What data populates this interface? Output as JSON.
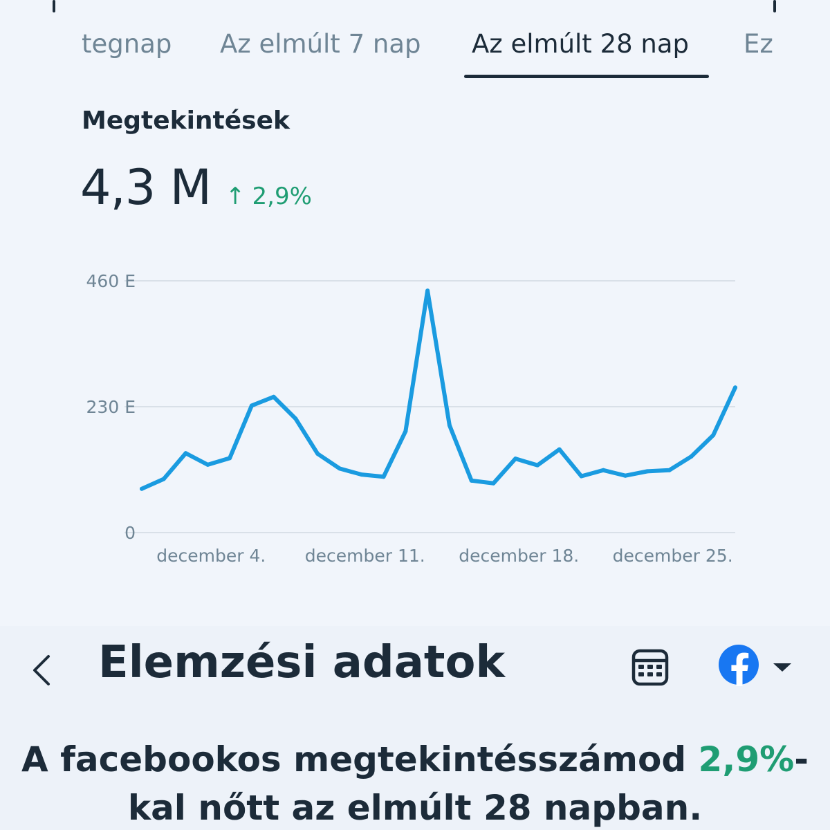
{
  "tabs": [
    {
      "label": "tegnap",
      "active": false
    },
    {
      "label": "Az elmúlt 7 nap",
      "active": false
    },
    {
      "label": "Az elmúlt 28 nap",
      "active": true
    },
    {
      "label": "Ez",
      "active": false
    }
  ],
  "metric": {
    "title": "Megtekintések",
    "value": "4,3 M",
    "change_arrow": "↑",
    "change": "2,9%"
  },
  "header": {
    "title": "Elemzési adatok",
    "back_icon": "chevron-left-icon",
    "calendar_icon": "calendar-icon",
    "platform_icon": "facebook-logo-icon",
    "dropdown_icon": "caret-down-icon"
  },
  "summary": {
    "text_before": "A facebookos megtekintésszámod ",
    "highlight": "2,9%",
    "text_after": "-kal nőtt az elmúlt 28 napban."
  },
  "colors": {
    "line": "#1a9be0",
    "positive": "#1f9d73",
    "text": "#1c2b39",
    "muted": "#6f8595"
  },
  "chart_data": {
    "type": "line",
    "ytick_labels": [
      "0",
      "230 E",
      "460 E"
    ],
    "yticks": [
      0,
      230000,
      460000
    ],
    "ylim": [
      0,
      460000
    ],
    "xtick_labels": [
      "december 4.",
      "december 11.",
      "december 18.",
      "december 25."
    ],
    "x": [
      1,
      2,
      3,
      4,
      5,
      6,
      7,
      8,
      9,
      10,
      11,
      12,
      13,
      14,
      15,
      16,
      17,
      18,
      19,
      20,
      21,
      22,
      23,
      24,
      25,
      26,
      27,
      28
    ],
    "xticks": [
      4,
      11,
      18,
      25
    ],
    "series": [
      {
        "values": [
          80000,
          98000,
          145000,
          124000,
          136000,
          232000,
          248000,
          208000,
          144000,
          117000,
          106000,
          102000,
          185000,
          442000,
          196000,
          95000,
          90000,
          135000,
          123000,
          152000,
          103000,
          114000,
          104000,
          112000,
          114000,
          139000,
          178000,
          265000
        ]
      }
    ],
    "grid": true
  }
}
